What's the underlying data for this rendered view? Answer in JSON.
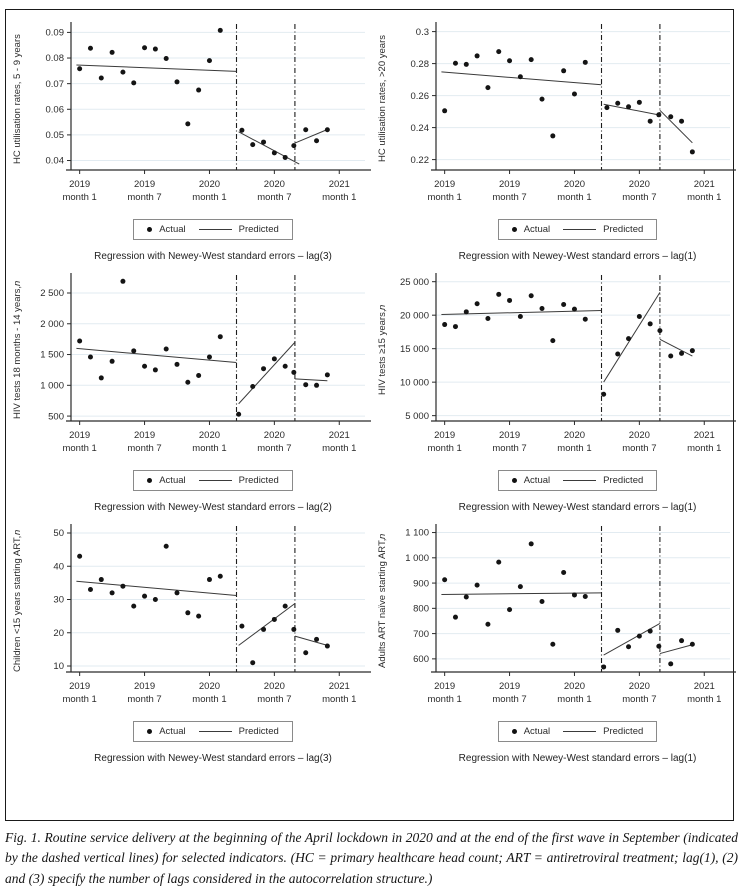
{
  "figure": {
    "caption": "Fig. 1. Routine service delivery at the beginning of the April lockdown in 2020 and at the end of the first wave in September (indicated by the dashed vertical lines) for selected indicators. (HC = primary healthcare head count; ART = antiretroviral treatment; lag(1), (2) and (3) specify the number of lags considered in the autocorrelation structure.)"
  },
  "legend": {
    "actual": "Actual",
    "predicted": "Predicted"
  },
  "colors": {
    "dot": "#141414",
    "predicted_line": "#3a3a3a",
    "grid": "#e2ebf1",
    "axis": "#2a2a2a",
    "vline": "#1c1c1c",
    "text": "#2b2b2b"
  },
  "x_axis": {
    "range": [
      -0.8,
      24.9
    ],
    "ticks": [
      {
        "x": 0,
        "year": "2019",
        "month": "month 1"
      },
      {
        "x": 6,
        "year": "2019",
        "month": "month 7"
      },
      {
        "x": 12,
        "year": "2020",
        "month": "month 1"
      },
      {
        "x": 18,
        "year": "2020",
        "month": "month 7"
      },
      {
        "x": 24,
        "year": "2021",
        "month": "month 1"
      }
    ]
  },
  "chart_data": [
    {
      "type": "scatter",
      "ylabel": "HC utilisation rates, 5 - 9 years",
      "ylabel_italic_suffix": "",
      "ylim": [
        0.0363,
        0.0925
      ],
      "yticks": [
        {
          "v": 0.04,
          "label": "0.04"
        },
        {
          "v": 0.05,
          "label": "0.05"
        },
        {
          "v": 0.06,
          "label": "0.06"
        },
        {
          "v": 0.07,
          "label": "0.07"
        },
        {
          "v": 0.08,
          "label": "0.08"
        },
        {
          "v": 0.09,
          "label": "0.09"
        }
      ],
      "vlines": [
        14.5,
        19.9
      ],
      "actual": {
        "x": [
          0,
          1,
          2,
          3,
          4,
          5,
          6,
          7,
          8,
          9,
          10,
          11,
          12,
          13,
          15,
          16,
          17,
          18,
          19,
          19.8,
          20.9,
          21.9,
          22.9
        ],
        "y": [
          0.0758,
          0.0838,
          0.0722,
          0.0822,
          0.0745,
          0.0703,
          0.084,
          0.0835,
          0.0798,
          0.0707,
          0.0543,
          0.0675,
          0.079,
          0.0908,
          0.0518,
          0.0462,
          0.0472,
          0.043,
          0.0412,
          0.0458,
          0.052,
          0.0477,
          0.052
        ]
      },
      "predicted_segments": [
        [
          -0.3,
          0.0773,
          14.5,
          0.0748
        ],
        [
          14.7,
          0.0512,
          20.3,
          0.0386
        ],
        [
          19.9,
          0.0468,
          22.9,
          0.0521
        ]
      ],
      "caption": "Regression with Newey-West standard errors – lag(3)"
    },
    {
      "type": "scatter",
      "ylabel": "HC utilisation rates, >20 years",
      "ylabel_italic_suffix": "",
      "ylim": [
        0.2135,
        0.3035
      ],
      "yticks": [
        {
          "v": 0.22,
          "label": "0.22"
        },
        {
          "v": 0.24,
          "label": "0.24"
        },
        {
          "v": 0.26,
          "label": "0.26"
        },
        {
          "v": 0.28,
          "label": "0.28"
        },
        {
          "v": 0.3,
          "label": "0.3"
        }
      ],
      "vlines": [
        14.5,
        19.9
      ],
      "actual": {
        "x": [
          0,
          1,
          2,
          3,
          4,
          5,
          6,
          7,
          8,
          9,
          10,
          11,
          12,
          13,
          15,
          16,
          17,
          18,
          19,
          19.8,
          20.9,
          21.9,
          22.9
        ],
        "y": [
          0.2505,
          0.2802,
          0.2795,
          0.2848,
          0.265,
          0.2875,
          0.2818,
          0.2718,
          0.2825,
          0.2578,
          0.2348,
          0.2755,
          0.261,
          0.2808,
          0.2525,
          0.2552,
          0.253,
          0.2558,
          0.244,
          0.248,
          0.2468,
          0.244,
          0.2248
        ]
      },
      "predicted_segments": [
        [
          -0.3,
          0.2748,
          14.5,
          0.2668
        ],
        [
          14.7,
          0.2546,
          19.9,
          0.2478
        ],
        [
          19.9,
          0.2508,
          22.9,
          0.2305
        ]
      ],
      "caption": "Regression with Newey-West standard errors – lag(1)"
    },
    {
      "type": "scatter",
      "ylabel": "HIV tests 18 months - 14 years, ",
      "ylabel_italic_suffix": "n",
      "ylim": [
        420,
        2760
      ],
      "yticks": [
        {
          "v": 500,
          "label": "500"
        },
        {
          "v": 1000,
          "label": "1 000"
        },
        {
          "v": 1500,
          "label": "1 500"
        },
        {
          "v": 2000,
          "label": "2 000"
        },
        {
          "v": 2500,
          "label": "2 500"
        }
      ],
      "vlines": [
        14.5,
        19.9
      ],
      "actual": {
        "x": [
          0,
          1,
          2,
          3,
          4,
          5,
          6,
          7,
          8,
          9,
          10,
          11,
          12,
          13,
          14.7,
          16,
          17,
          18,
          19,
          19.8,
          20.9,
          21.9,
          22.9
        ],
        "y": [
          1720,
          1460,
          1120,
          1390,
          2690,
          1560,
          1310,
          1250,
          1590,
          1340,
          1050,
          1160,
          1460,
          1790,
          530,
          980,
          1270,
          1430,
          1310,
          1210,
          1010,
          1000,
          1170
        ]
      },
      "predicted_segments": [
        [
          -0.3,
          1600,
          14.5,
          1370
        ],
        [
          14.7,
          700,
          19.9,
          1700
        ],
        [
          19.9,
          1105,
          22.9,
          1075
        ]
      ],
      "caption": "Regression with Newey-West standard errors – lag(2)"
    },
    {
      "type": "scatter",
      "ylabel": "HIV tests ≥15 years, ",
      "ylabel_italic_suffix": "n",
      "ylim": [
        4200,
        25700
      ],
      "yticks": [
        {
          "v": 5000,
          "label": "5 000"
        },
        {
          "v": 10000,
          "label": "10 000"
        },
        {
          "v": 15000,
          "label": "15 000"
        },
        {
          "v": 20000,
          "label": "20 000"
        },
        {
          "v": 25000,
          "label": "25 000"
        }
      ],
      "vlines": [
        14.5,
        19.9
      ],
      "actual": {
        "x": [
          0,
          1,
          2,
          3,
          4,
          5,
          6,
          7,
          8,
          9,
          10,
          11,
          12,
          13,
          14.7,
          16,
          17,
          18,
          19,
          19.9,
          20.9,
          21.9,
          22.9
        ],
        "y": [
          18600,
          18300,
          20500,
          21700,
          19500,
          23100,
          22200,
          19800,
          22900,
          21000,
          16200,
          21600,
          20900,
          19400,
          8200,
          14200,
          16500,
          19800,
          18700,
          17700,
          13900,
          14300,
          14700
        ]
      },
      "predicted_segments": [
        [
          -0.3,
          20100,
          14.5,
          20700
        ],
        [
          14.7,
          10000,
          19.9,
          23400
        ],
        [
          19.9,
          16400,
          22.9,
          13900
        ]
      ],
      "caption": "Regression with Newey-West standard errors – lag(1)"
    },
    {
      "type": "scatter",
      "ylabel": "Children <15 years starting ART, ",
      "ylabel_italic_suffix": "n",
      "ylim": [
        8.2,
        51.5
      ],
      "yticks": [
        {
          "v": 10,
          "label": "10"
        },
        {
          "v": 20,
          "label": "20"
        },
        {
          "v": 30,
          "label": "30"
        },
        {
          "v": 40,
          "label": "40"
        },
        {
          "v": 50,
          "label": "50"
        }
      ],
      "vlines": [
        14.5,
        19.9
      ],
      "actual": {
        "x": [
          0,
          1,
          2,
          3,
          4,
          5,
          6,
          7,
          8,
          9,
          10,
          11,
          12,
          13,
          15,
          16,
          17,
          18,
          19,
          19.8,
          20.9,
          21.9,
          22.9
        ],
        "y": [
          43,
          33,
          36,
          32,
          34,
          28,
          31,
          30,
          46,
          32,
          26,
          25,
          36,
          37,
          22,
          11,
          21,
          24,
          28,
          21,
          14,
          18,
          16
        ]
      },
      "predicted_segments": [
        [
          -0.3,
          35.5,
          14.5,
          31.2
        ],
        [
          14.7,
          16.2,
          19.9,
          28.8
        ],
        [
          19.9,
          19.0,
          22.9,
          16.2
        ]
      ],
      "caption": "Regression with Newey-West standard errors – lag(3)"
    },
    {
      "type": "scatter",
      "ylabel": "Adults ART naïve starting ART, ",
      "ylabel_italic_suffix": "n",
      "ylim": [
        548,
        1118
      ],
      "yticks": [
        {
          "v": 600,
          "label": "600"
        },
        {
          "v": 700,
          "label": "700"
        },
        {
          "v": 800,
          "label": "800"
        },
        {
          "v": 900,
          "label": "900"
        },
        {
          "v": 1000,
          "label": "1 000"
        },
        {
          "v": 1100,
          "label": "1 100"
        }
      ],
      "vlines": [
        14.5,
        19.9
      ],
      "actual": {
        "x": [
          0,
          1,
          2,
          3,
          4,
          5,
          6,
          7,
          8,
          9,
          10,
          11,
          12,
          13,
          14.7,
          16,
          17,
          18,
          19,
          19.8,
          20.9,
          21.9,
          22.9
        ],
        "y": [
          913,
          765,
          845,
          892,
          737,
          983,
          795,
          886,
          1055,
          827,
          658,
          942,
          853,
          847,
          568,
          713,
          648,
          690,
          710,
          650,
          580,
          672,
          658
        ]
      },
      "predicted_segments": [
        [
          -0.3,
          855,
          14.5,
          861
        ],
        [
          14.7,
          615,
          19.9,
          740
        ],
        [
          19.9,
          621,
          22.9,
          656
        ]
      ],
      "caption": "Regression with Newey-West standard errors – lag(1)"
    }
  ]
}
